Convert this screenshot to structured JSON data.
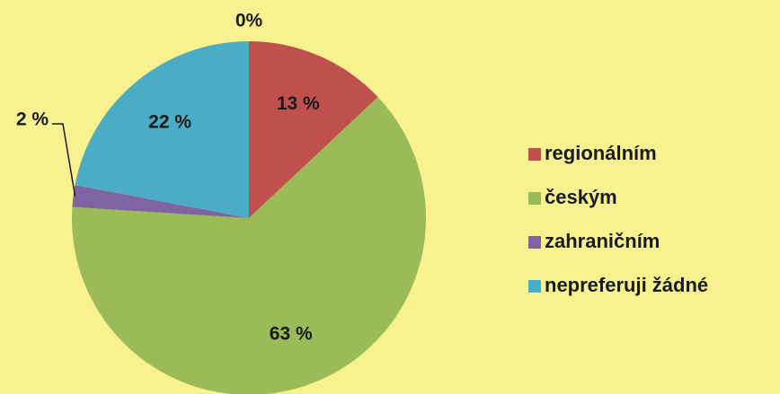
{
  "chart_data": {
    "type": "pie",
    "annotations": [
      "0%"
    ],
    "categories": [
      "regionálním",
      "českým",
      "zahraničním",
      "nepreferuji žádné"
    ],
    "values": [
      13,
      63,
      2,
      22
    ],
    "value_labels": [
      "13 %",
      "63 %",
      "2 %",
      "22 %"
    ],
    "colors": [
      "#c0504d",
      "#9bbb59",
      "#8064a2",
      "#4bacc6"
    ],
    "legend": "right"
  }
}
